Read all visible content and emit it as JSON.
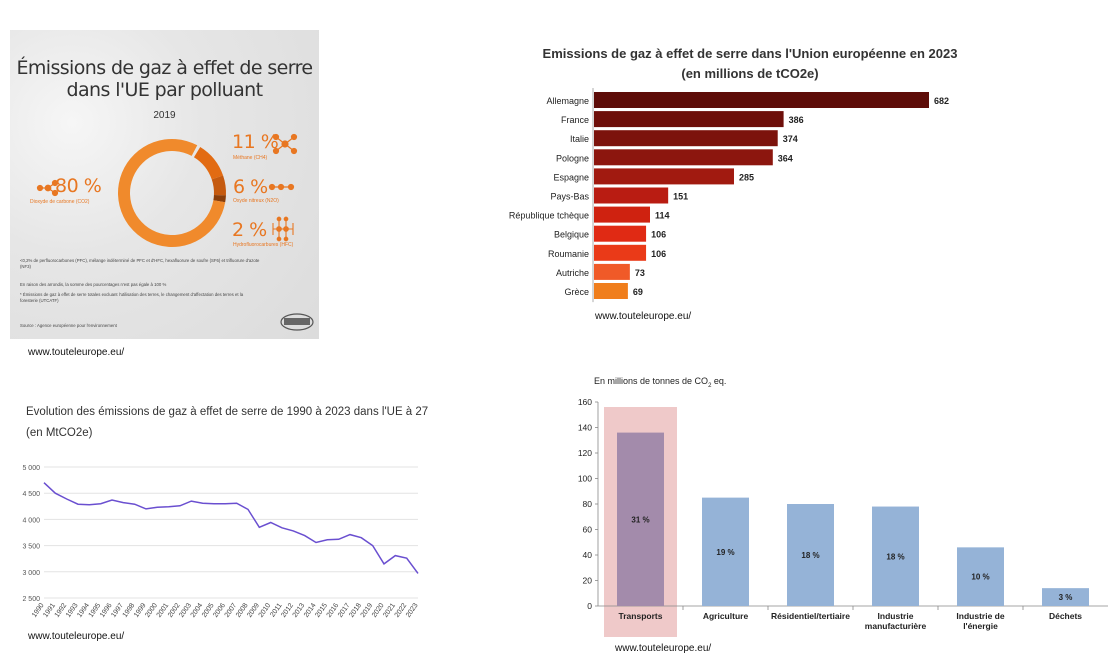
{
  "pollutant_panel": {
    "title_line1": "Émissions de gaz à effet de serre",
    "title_line2": "dans l'UE par polluant",
    "year": "2019",
    "items": [
      {
        "pct": "80 %",
        "label": "Dioxyde de carbone (CO2)",
        "color": "#f08a2c"
      },
      {
        "pct": "11 %",
        "label": "Méthane (CH4)",
        "color": "#e26b12"
      },
      {
        "pct": "6 %",
        "label": "Oxyde nitreux (N2O)",
        "color": "#c55a0f"
      },
      {
        "pct": "2 %",
        "label": "Hydrofluorocarbures (HFC)",
        "color": "#8a3e0a"
      }
    ],
    "notes": [
      "<0,2% de perfluorocarbones (PFC), mélange indéterminé de PFC et d'HFC, hexafluorure de soufre (SF6) et trifluorure d'azote (NF3)",
      "En raison des arrondis, la somme des pourcentages n'est pas égale à 100 %",
      "* Émissions de gaz à effet de serre totales excluant l'utilisation des terres, le changement d'affectation des terres et la foresterie (UTCATF)",
      "Source : Agence européenne pour l'environnement"
    ],
    "source_caption": "www.touteleurope.eu/"
  },
  "countries_panel": {
    "title_line1": "Emissions de gaz à effet de serre dans l'Union européenne en 2023",
    "title_line2": "(en millions de tCO2e)",
    "source_caption": "www.touteleurope.eu/"
  },
  "evolution_panel": {
    "title_line1": "Evolution des émissions de gaz à effet de serre de 1990 à 2023 dans l'UE à 27",
    "title_line2": "(en MtCO2e)",
    "source_caption": "www.touteleurope.eu/"
  },
  "sectors_panel": {
    "unit_prefix": "En millions de tonnes de CO",
    "unit_sub": "2",
    "unit_suffix": " eq.",
    "source_caption": "www.touteleurope.eu/"
  },
  "chart_data": [
    {
      "type": "pie",
      "title": "Émissions de gaz à effet de serre dans l'UE par polluant",
      "subtitle": "2019",
      "categories": [
        "Dioxyde de carbone (CO2)",
        "Méthane (CH4)",
        "Oxyde nitreux (N2O)",
        "Hydrofluorocarbures (HFC)"
      ],
      "values": [
        80,
        11,
        6,
        2
      ]
    },
    {
      "type": "bar",
      "orientation": "horizontal",
      "title": "Emissions de gaz à effet de serre dans l'Union européenne en 2023",
      "subtitle": "(en millions de tCO2e)",
      "categories": [
        "Allemagne",
        "France",
        "Italie",
        "Pologne",
        "Espagne",
        "Pays-Bas",
        "République tchèque",
        "Belgique",
        "Roumanie",
        "Autriche",
        "Grèce"
      ],
      "values": [
        682,
        386,
        374,
        364,
        285,
        151,
        114,
        106,
        106,
        73,
        69
      ],
      "colors": [
        "#5e0c08",
        "#6e0f0a",
        "#7c130c",
        "#8c160e",
        "#a11a10",
        "#b91c12",
        "#cf2210",
        "#e02a14",
        "#ea3a18",
        "#f05a28",
        "#f07e1c"
      ]
    },
    {
      "type": "line",
      "title": "Evolution des émissions de gaz à effet de serre de 1990 à 2023 dans l'UE à 27",
      "subtitle": "(en MtCO2e)",
      "x": [
        "1990",
        "1991",
        "1992",
        "1993",
        "1994",
        "1995",
        "1996",
        "1997",
        "1998",
        "1999",
        "2000",
        "2001",
        "2002",
        "2003",
        "2004",
        "2005",
        "2006",
        "2007",
        "2008",
        "2009",
        "2010",
        "2011",
        "2012",
        "2013",
        "2014",
        "2015",
        "2016",
        "2017",
        "2018",
        "2019",
        "2020",
        "2021",
        "2022",
        "2023"
      ],
      "values": [
        4700,
        4500,
        4390,
        4290,
        4280,
        4300,
        4370,
        4320,
        4290,
        4200,
        4230,
        4240,
        4260,
        4350,
        4310,
        4300,
        4300,
        4310,
        4190,
        3850,
        3940,
        3840,
        3780,
        3690,
        3560,
        3610,
        3620,
        3710,
        3650,
        3500,
        3150,
        3310,
        3260,
        2970
      ],
      "yticks": [
        "2 500",
        "3 000",
        "3 500",
        "4 000",
        "4 500",
        "5 000"
      ],
      "ylim": [
        2500,
        5000
      ],
      "color": "#6a4fd0",
      "grid": true
    },
    {
      "type": "bar",
      "ylabel": "En millions de tonnes de CO2 eq.",
      "categories": [
        "Transports",
        "Agriculture",
        "Résidentiel/tertiaire",
        "Industrie manufacturière",
        "Industrie de l'énergie",
        "Déchets"
      ],
      "category_lines": [
        [
          "Transports"
        ],
        [
          "Agriculture"
        ],
        [
          "Résidentiel/tertiaire"
        ],
        [
          "Industrie",
          "manufacturière"
        ],
        [
          "Industrie de",
          "l'énergie"
        ],
        [
          "Déchets"
        ]
      ],
      "values": [
        136,
        85,
        80,
        78,
        46,
        14
      ],
      "data_labels": [
        "31 %",
        "19 %",
        "18 %",
        "18 %",
        "10 %",
        "3 %"
      ],
      "ylim": [
        0,
        160
      ],
      "yticks": [
        0,
        20,
        40,
        60,
        80,
        100,
        120,
        140,
        160
      ],
      "highlight": "Transports",
      "bar_color": "#95b3d7",
      "highlight_bar_color": "#a38bab",
      "highlight_bg_color": "#efc9c9"
    }
  ]
}
